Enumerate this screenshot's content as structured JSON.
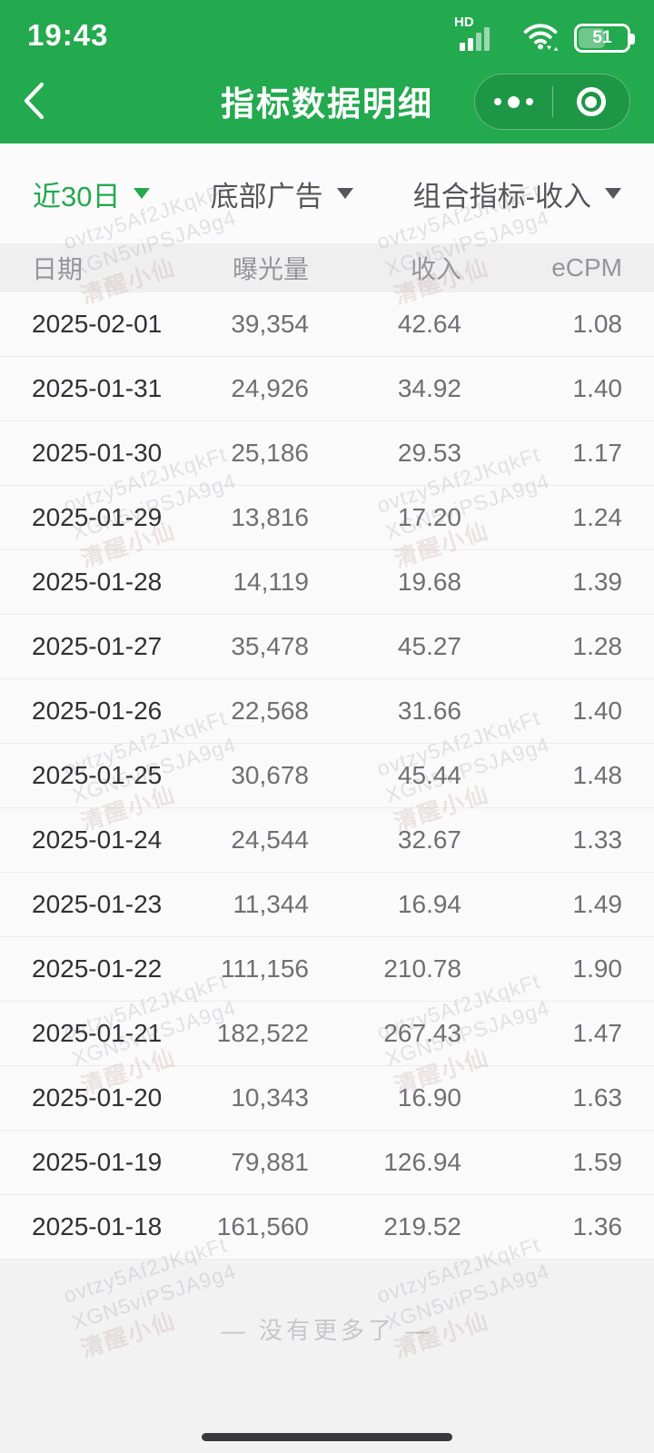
{
  "status_bar": {
    "time": "19:43",
    "hd_label": "HD",
    "battery_percent": "51"
  },
  "nav": {
    "title": "指标数据明细"
  },
  "filters": [
    {
      "label": "近30日",
      "active": true
    },
    {
      "label": "底部广告",
      "active": false
    },
    {
      "label": "组合指标-收入",
      "active": false
    }
  ],
  "table": {
    "columns": [
      "日期",
      "曝光量",
      "收入",
      "eCPM"
    ],
    "rows": [
      {
        "date": "2025-02-01",
        "impressions": "39,354",
        "revenue": "42.64",
        "ecpm": "1.08"
      },
      {
        "date": "2025-01-31",
        "impressions": "24,926",
        "revenue": "34.92",
        "ecpm": "1.40"
      },
      {
        "date": "2025-01-30",
        "impressions": "25,186",
        "revenue": "29.53",
        "ecpm": "1.17"
      },
      {
        "date": "2025-01-29",
        "impressions": "13,816",
        "revenue": "17.20",
        "ecpm": "1.24"
      },
      {
        "date": "2025-01-28",
        "impressions": "14,119",
        "revenue": "19.68",
        "ecpm": "1.39"
      },
      {
        "date": "2025-01-27",
        "impressions": "35,478",
        "revenue": "45.27",
        "ecpm": "1.28"
      },
      {
        "date": "2025-01-26",
        "impressions": "22,568",
        "revenue": "31.66",
        "ecpm": "1.40"
      },
      {
        "date": "2025-01-25",
        "impressions": "30,678",
        "revenue": "45.44",
        "ecpm": "1.48"
      },
      {
        "date": "2025-01-24",
        "impressions": "24,544",
        "revenue": "32.67",
        "ecpm": "1.33"
      },
      {
        "date": "2025-01-23",
        "impressions": "11,344",
        "revenue": "16.94",
        "ecpm": "1.49"
      },
      {
        "date": "2025-01-22",
        "impressions": "111,156",
        "revenue": "210.78",
        "ecpm": "1.90"
      },
      {
        "date": "2025-01-21",
        "impressions": "182,522",
        "revenue": "267.43",
        "ecpm": "1.47"
      },
      {
        "date": "2025-01-20",
        "impressions": "10,343",
        "revenue": "16.90",
        "ecpm": "1.63"
      },
      {
        "date": "2025-01-19",
        "impressions": "79,881",
        "revenue": "126.94",
        "ecpm": "1.59"
      },
      {
        "date": "2025-01-18",
        "impressions": "161,560",
        "revenue": "219.52",
        "ecpm": "1.36"
      }
    ]
  },
  "footer": {
    "no_more_text": "—  没有更多了  —"
  },
  "watermark": {
    "lines": [
      "ovtzy5Af2JKqkFt",
      "XGN5viPSJA9g4",
      "清醒小仙"
    ]
  },
  "colors": {
    "header_green": "#23a94e",
    "active_filter": "#23a94e",
    "date_text": "#303034",
    "number_text": "#6f6f74"
  }
}
